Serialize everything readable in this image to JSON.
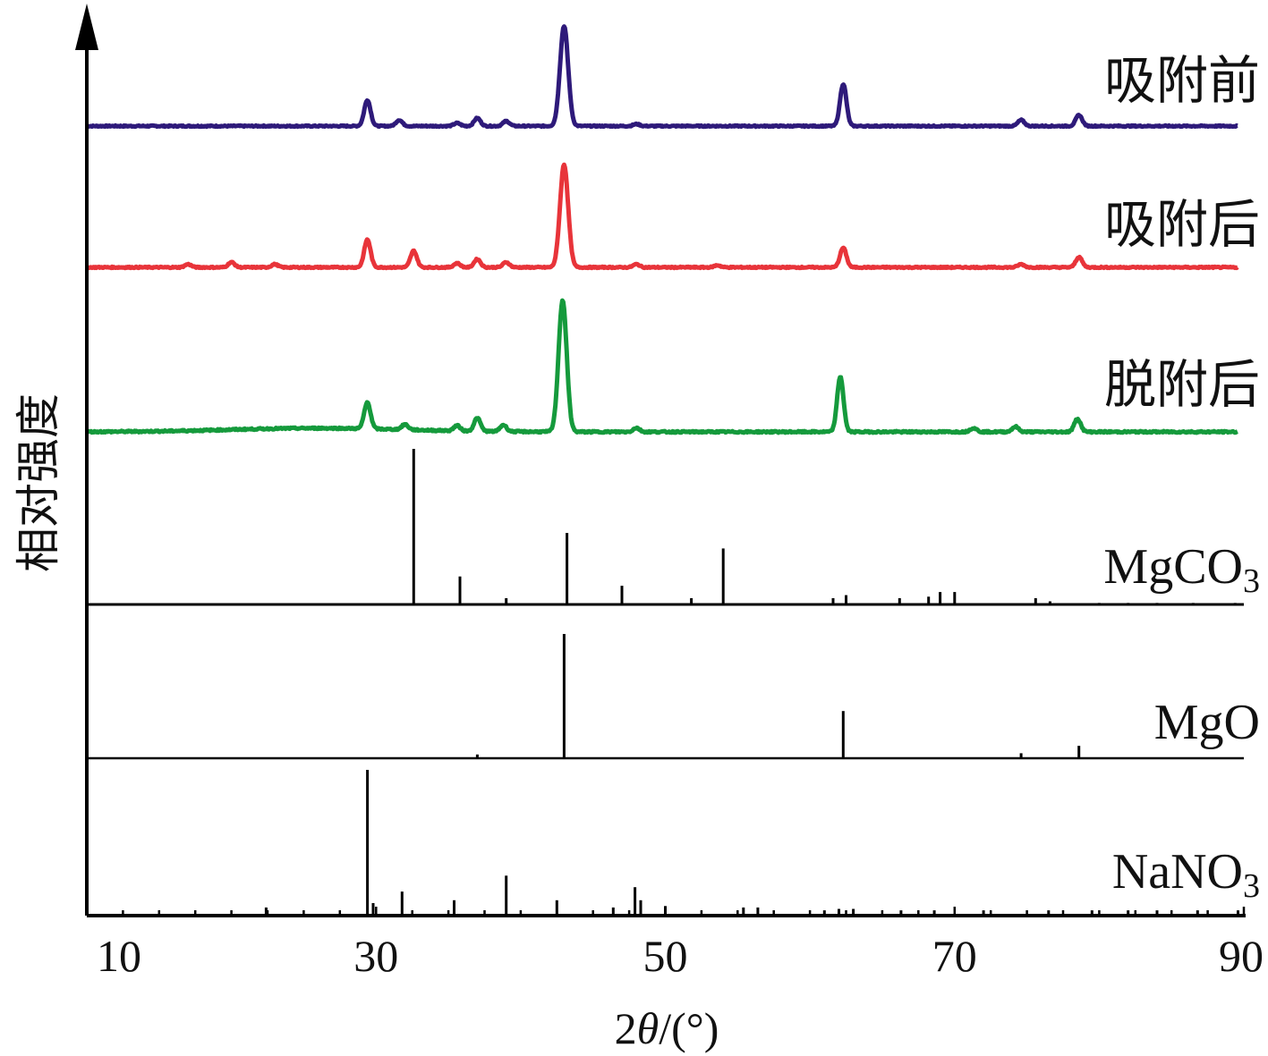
{
  "chart_data": {
    "type": "line",
    "xlabel_prefix": "2",
    "xlabel_theta": "θ",
    "xlabel_suffix": "/(°)",
    "ylabel": "相对强度",
    "xlim": [
      10,
      90
    ],
    "xticks": [
      "10",
      "30",
      "50",
      "70",
      "90"
    ],
    "series": [
      {
        "name": "吸附前",
        "color": "#2e1a7a",
        "peaks": [
          [
            29.4,
            0.26
          ],
          [
            31.6,
            0.06
          ],
          [
            35.6,
            0.03
          ],
          [
            37.0,
            0.08
          ],
          [
            39.0,
            0.05
          ],
          [
            43.0,
            1.0
          ],
          [
            48.0,
            0.02
          ],
          [
            62.3,
            0.42
          ],
          [
            74.6,
            0.06
          ],
          [
            78.6,
            0.11
          ]
        ]
      },
      {
        "name": "吸附后",
        "color": "#e8343a",
        "peaks": [
          [
            17.0,
            0.03
          ],
          [
            20.0,
            0.05
          ],
          [
            23.0,
            0.03
          ],
          [
            29.4,
            0.27
          ],
          [
            32.6,
            0.16
          ],
          [
            35.6,
            0.04
          ],
          [
            37.0,
            0.08
          ],
          [
            39.0,
            0.05
          ],
          [
            43.0,
            1.0
          ],
          [
            48.0,
            0.03
          ],
          [
            53.6,
            0.02
          ],
          [
            62.3,
            0.19
          ],
          [
            74.6,
            0.03
          ],
          [
            78.6,
            0.1
          ]
        ]
      },
      {
        "name": "脱附后",
        "color": "#159a3c",
        "peaks": [
          [
            29.4,
            0.2
          ],
          [
            32.0,
            0.04
          ],
          [
            35.6,
            0.04
          ],
          [
            37.0,
            0.1
          ],
          [
            38.8,
            0.05
          ],
          [
            42.9,
            1.0
          ],
          [
            48.0,
            0.03
          ],
          [
            62.1,
            0.42
          ],
          [
            71.3,
            0.03
          ],
          [
            74.2,
            0.04
          ],
          [
            78.5,
            0.1
          ]
        ]
      }
    ],
    "references": [
      {
        "name": "MgCO",
        "subscript": "3",
        "sticks": [
          [
            32.6,
            1.0
          ],
          [
            35.8,
            0.18
          ],
          [
            39.0,
            0.04
          ],
          [
            43.2,
            0.46
          ],
          [
            47.0,
            0.12
          ],
          [
            51.8,
            0.04
          ],
          [
            54.0,
            0.36
          ],
          [
            61.6,
            0.04
          ],
          [
            62.5,
            0.06
          ],
          [
            66.2,
            0.04
          ],
          [
            68.2,
            0.05
          ],
          [
            69.0,
            0.08
          ],
          [
            70.0,
            0.08
          ],
          [
            75.6,
            0.04
          ],
          [
            76.6,
            0.02
          ],
          [
            80.0,
            0.01
          ],
          [
            82.0,
            0.01
          ],
          [
            84.0,
            0.01
          ],
          [
            86.5,
            0.01
          ],
          [
            89.4,
            0.01
          ]
        ]
      },
      {
        "name": "MgO",
        "subscript": "",
        "sticks": [
          [
            37.0,
            0.03
          ],
          [
            43.0,
            1.0
          ],
          [
            62.3,
            0.38
          ],
          [
            74.6,
            0.04
          ],
          [
            78.6,
            0.1
          ]
        ]
      },
      {
        "name": "NaNO",
        "subscript": "3",
        "sticks": [
          [
            22.4,
            0.05
          ],
          [
            29.4,
            1.0
          ],
          [
            29.8,
            0.08
          ],
          [
            31.8,
            0.16
          ],
          [
            35.4,
            0.1
          ],
          [
            39.0,
            0.27
          ],
          [
            42.5,
            0.1
          ],
          [
            46.4,
            0.05
          ],
          [
            47.9,
            0.19
          ],
          [
            48.3,
            0.1
          ],
          [
            50.0,
            0.06
          ],
          [
            55.4,
            0.05
          ],
          [
            56.4,
            0.05
          ],
          [
            61.0,
            0.03
          ],
          [
            62.0,
            0.04
          ],
          [
            63.0,
            0.04
          ],
          [
            66.3,
            0.03
          ],
          [
            68.6,
            0.03
          ],
          [
            72.0,
            0.03
          ],
          [
            76.5,
            0.03
          ],
          [
            79.5,
            0.03
          ],
          [
            82.0,
            0.03
          ],
          [
            84.0,
            0.03
          ],
          [
            86.8,
            0.03
          ],
          [
            89.6,
            0.03
          ]
        ]
      }
    ]
  }
}
